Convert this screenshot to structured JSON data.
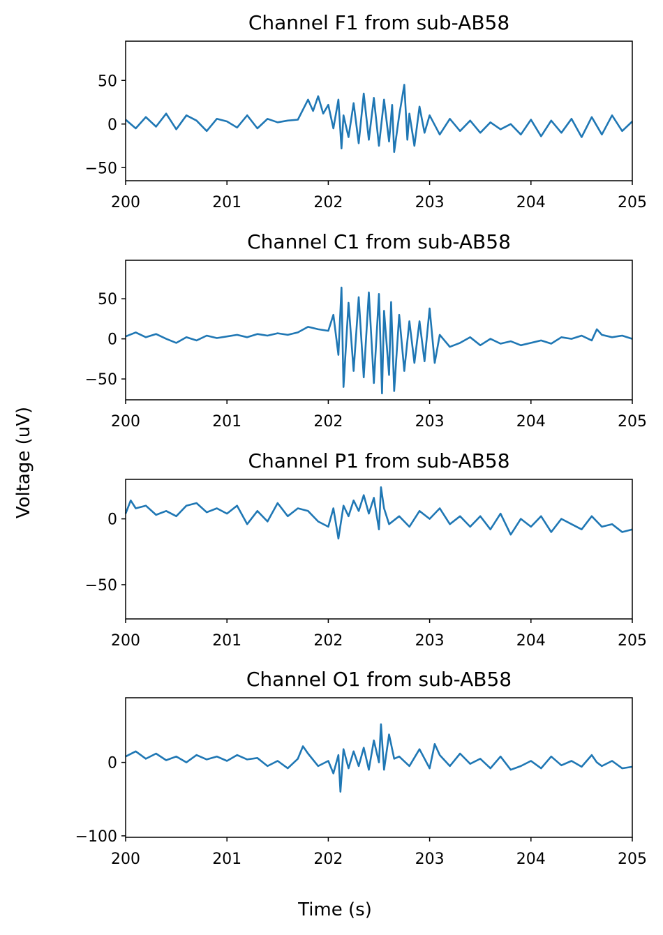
{
  "figure": {
    "xlabel": "Time (s)",
    "ylabel": "Voltage (uV)"
  },
  "chart_data": [
    {
      "type": "line",
      "title": "Channel F1 from sub-AB58",
      "xlim": [
        200,
        205
      ],
      "ylim": [
        -65,
        95
      ],
      "x_ticks": [
        "200",
        "201",
        "202",
        "203",
        "204",
        "205"
      ],
      "y_ticks": [
        {
          "value": 50,
          "label": "50"
        },
        {
          "value": 0,
          "label": "0"
        },
        {
          "value": -50,
          "label": "−50"
        }
      ],
      "color": "#1f77b4",
      "x": [
        200.0,
        200.1,
        200.2,
        200.3,
        200.4,
        200.5,
        200.6,
        200.7,
        200.8,
        200.9,
        201.0,
        201.1,
        201.2,
        201.3,
        201.4,
        201.5,
        201.6,
        201.7,
        201.8,
        201.85,
        201.9,
        201.95,
        202.0,
        202.05,
        202.1,
        202.13,
        202.15,
        202.2,
        202.25,
        202.3,
        202.35,
        202.4,
        202.45,
        202.5,
        202.55,
        202.6,
        202.63,
        202.65,
        202.7,
        202.75,
        202.78,
        202.8,
        202.85,
        202.9,
        202.95,
        203.0,
        203.1,
        203.2,
        203.3,
        203.4,
        203.5,
        203.6,
        203.7,
        203.8,
        203.9,
        204.0,
        204.1,
        204.2,
        204.3,
        204.4,
        204.5,
        204.6,
        204.7,
        204.8,
        204.9,
        205.0
      ],
      "values": [
        5,
        -5,
        8,
        -3,
        12,
        -6,
        10,
        4,
        -8,
        6,
        3,
        -4,
        10,
        -5,
        6,
        2,
        4,
        5,
        28,
        15,
        32,
        12,
        22,
        -5,
        28,
        -28,
        10,
        -15,
        24,
        -22,
        35,
        -18,
        30,
        -25,
        28,
        -20,
        22,
        -32,
        10,
        45,
        -18,
        12,
        -25,
        20,
        -10,
        10,
        -12,
        6,
        -8,
        4,
        -10,
        2,
        -6,
        0,
        -12,
        5,
        -14,
        4,
        -10,
        6,
        -15,
        8,
        -12,
        10,
        -8,
        3
      ]
    },
    {
      "type": "line",
      "title": "Channel C1 from sub-AB58",
      "xlim": [
        200,
        205
      ],
      "ylim": [
        -76,
        98
      ],
      "x_ticks": [
        "200",
        "201",
        "202",
        "203",
        "204",
        "205"
      ],
      "y_ticks": [
        {
          "value": 50,
          "label": "50"
        },
        {
          "value": 0,
          "label": "0"
        },
        {
          "value": -50,
          "label": "−50"
        }
      ],
      "color": "#1f77b4",
      "x": [
        200.0,
        200.1,
        200.2,
        200.3,
        200.4,
        200.5,
        200.6,
        200.7,
        200.8,
        200.9,
        201.0,
        201.1,
        201.2,
        201.3,
        201.4,
        201.5,
        201.6,
        201.7,
        201.8,
        201.9,
        202.0,
        202.05,
        202.1,
        202.13,
        202.15,
        202.2,
        202.25,
        202.3,
        202.35,
        202.4,
        202.45,
        202.5,
        202.53,
        202.55,
        202.6,
        202.62,
        202.65,
        202.7,
        202.75,
        202.8,
        202.85,
        202.9,
        202.95,
        203.0,
        203.05,
        203.1,
        203.2,
        203.3,
        203.4,
        203.5,
        203.6,
        203.7,
        203.8,
        203.9,
        204.0,
        204.1,
        204.2,
        204.3,
        204.4,
        204.5,
        204.6,
        204.65,
        204.7,
        204.8,
        204.9,
        205.0
      ],
      "values": [
        3,
        8,
        2,
        6,
        0,
        -5,
        2,
        -2,
        4,
        1,
        3,
        5,
        2,
        6,
        4,
        7,
        5,
        8,
        15,
        12,
        10,
        30,
        -20,
        64,
        -60,
        45,
        -40,
        52,
        -48,
        58,
        -55,
        56,
        -68,
        35,
        -45,
        46,
        -65,
        30,
        -40,
        22,
        -30,
        22,
        -28,
        38,
        -30,
        5,
        -10,
        -5,
        2,
        -8,
        0,
        -6,
        -3,
        -8,
        -5,
        -2,
        -6,
        2,
        0,
        4,
        -2,
        12,
        5,
        2,
        4,
        0
      ]
    },
    {
      "type": "line",
      "title": "Channel P1 from sub-AB58",
      "xlim": [
        200,
        205
      ],
      "ylim": [
        -76,
        30
      ],
      "x_ticks": [
        "200",
        "201",
        "202",
        "203",
        "204",
        "205"
      ],
      "y_ticks": [
        {
          "value": 0,
          "label": "0"
        },
        {
          "value": -50,
          "label": "−50"
        }
      ],
      "color": "#1f77b4",
      "x": [
        200.0,
        200.05,
        200.1,
        200.2,
        200.3,
        200.4,
        200.5,
        200.6,
        200.7,
        200.8,
        200.9,
        201.0,
        201.1,
        201.2,
        201.3,
        201.4,
        201.5,
        201.6,
        201.7,
        201.8,
        201.9,
        202.0,
        202.05,
        202.1,
        202.15,
        202.2,
        202.25,
        202.3,
        202.35,
        202.4,
        202.45,
        202.5,
        202.52,
        202.55,
        202.6,
        202.7,
        202.8,
        202.9,
        203.0,
        203.1,
        203.2,
        203.3,
        203.4,
        203.5,
        203.6,
        203.7,
        203.8,
        203.9,
        204.0,
        204.1,
        204.2,
        204.3,
        204.4,
        204.5,
        204.6,
        204.7,
        204.8,
        204.9,
        205.0
      ],
      "values": [
        4,
        14,
        8,
        10,
        3,
        6,
        2,
        10,
        12,
        5,
        8,
        4,
        10,
        -4,
        6,
        -2,
        12,
        2,
        8,
        6,
        -2,
        -6,
        8,
        -15,
        10,
        2,
        14,
        6,
        18,
        4,
        16,
        -8,
        24,
        8,
        -4,
        2,
        -6,
        6,
        0,
        8,
        -4,
        2,
        -6,
        2,
        -8,
        4,
        -12,
        0,
        -6,
        2,
        -10,
        0,
        -4,
        -8,
        2,
        -6,
        -4,
        -10,
        -8
      ]
    },
    {
      "type": "line",
      "title": "Channel O1 from sub-AB58",
      "xlim": [
        200,
        205
      ],
      "ylim": [
        -102,
        88
      ],
      "x_ticks": [
        "200",
        "201",
        "202",
        "203",
        "204",
        "205"
      ],
      "y_ticks": [
        {
          "value": 0,
          "label": "0"
        },
        {
          "value": -100,
          "label": "−100"
        }
      ],
      "color": "#1f77b4",
      "x": [
        200.0,
        200.1,
        200.2,
        200.3,
        200.4,
        200.5,
        200.6,
        200.7,
        200.8,
        200.9,
        201.0,
        201.1,
        201.2,
        201.3,
        201.4,
        201.5,
        201.6,
        201.7,
        201.75,
        201.8,
        201.9,
        202.0,
        202.05,
        202.1,
        202.12,
        202.15,
        202.2,
        202.25,
        202.3,
        202.35,
        202.4,
        202.45,
        202.5,
        202.52,
        202.55,
        202.6,
        202.65,
        202.7,
        202.8,
        202.9,
        203.0,
        203.05,
        203.1,
        203.2,
        203.3,
        203.4,
        203.5,
        203.6,
        203.7,
        203.8,
        203.9,
        204.0,
        204.1,
        204.2,
        204.3,
        204.4,
        204.5,
        204.6,
        204.65,
        204.7,
        204.8,
        204.9,
        205.0
      ],
      "values": [
        8,
        15,
        5,
        12,
        3,
        8,
        0,
        10,
        4,
        8,
        2,
        10,
        4,
        6,
        -5,
        2,
        -8,
        5,
        22,
        12,
        -5,
        2,
        -15,
        10,
        -40,
        18,
        -8,
        15,
        -5,
        20,
        -10,
        30,
        0,
        52,
        -10,
        38,
        5,
        8,
        -5,
        18,
        -8,
        25,
        10,
        -5,
        12,
        -2,
        5,
        -8,
        8,
        -10,
        -5,
        2,
        -8,
        8,
        -4,
        2,
        -6,
        10,
        0,
        -5,
        2,
        -8,
        -6
      ]
    }
  ]
}
